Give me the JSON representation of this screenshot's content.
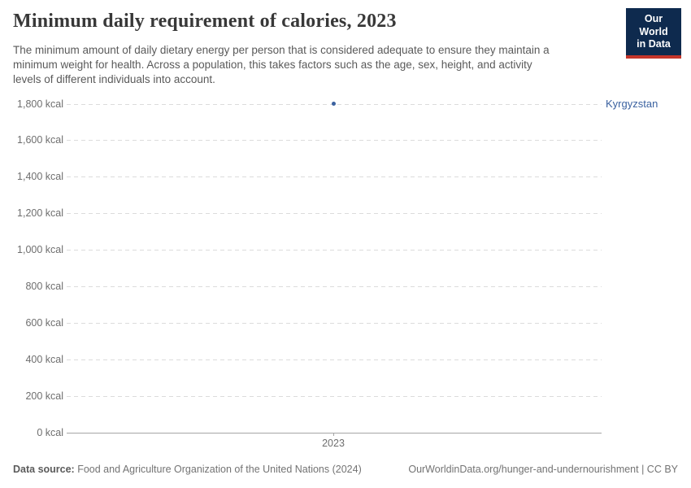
{
  "header": {
    "title": "Minimum daily requirement of calories, 2023",
    "subtitle_lines": [
      "The minimum amount of daily dietary energy per person that is considered adequate to ensure they maintain a",
      "minimum weight for health. Across a population, this takes factors such as the age, sex, height, and activity",
      "levels of different individuals into account."
    ],
    "logo": {
      "line1": "Our World",
      "line2": "in Data",
      "bg_color": "#0e2a4e",
      "accent_color": "#c4352a"
    }
  },
  "chart_data": {
    "type": "scatter",
    "title": "Minimum daily requirement of calories, 2023",
    "unit": "kcal",
    "x": [
      2023
    ],
    "series": [
      {
        "name": "Kyrgyzstan",
        "values": [
          1800
        ],
        "color": "#3b62a0"
      }
    ],
    "xlabel": "",
    "ylabel": "",
    "x_tick_labels": [
      "2023"
    ],
    "y_ticks": [
      {
        "label": "1,800 kcal",
        "value": 1800
      },
      {
        "label": "1,600 kcal",
        "value": 1600
      },
      {
        "label": "1,400 kcal",
        "value": 1400
      },
      {
        "label": "1,200 kcal",
        "value": 1200
      },
      {
        "label": "1,000 kcal",
        "value": 1000
      },
      {
        "label": "800 kcal",
        "value": 800
      },
      {
        "label": "600 kcal",
        "value": 600
      },
      {
        "label": "400 kcal",
        "value": 400
      },
      {
        "label": "200 kcal",
        "value": 200
      },
      {
        "label": "0 kcal",
        "value": 0
      }
    ],
    "ylim": [
      0,
      1800
    ],
    "grid": "horizontal-dashed",
    "legend_position": "entity-label-right",
    "colors": {
      "gridline": "#dcdcdc",
      "axis": "#a5a5a5",
      "tick_text": "#6e6e6e"
    }
  },
  "footer": {
    "source_label": "Data source:",
    "source_text": "Food and Agriculture Organization of the United Nations (2024)",
    "link_text": "OurWorldinData.org/hunger-and-undernourishment | CC BY"
  }
}
